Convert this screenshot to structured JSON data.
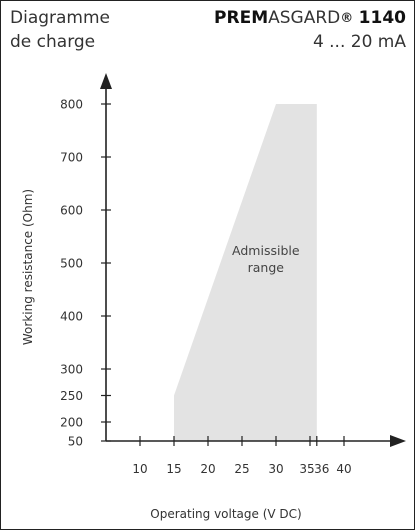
{
  "header": {
    "title_line1": "Diagramme",
    "title_line2": "de charge",
    "brand_bold": "PREM",
    "brand_light": "ASGARD",
    "brand_reg": "®",
    "model": "1140",
    "signal": "4 ... 20 mA"
  },
  "chart_data": {
    "type": "area",
    "title": "",
    "xlabel": "Operating voltage  (V DC)",
    "ylabel": "Working resistance  (Ohm)",
    "x_ticks": [
      10,
      15,
      20,
      25,
      30,
      35,
      36,
      40
    ],
    "y_ticks": [
      50,
      200,
      250,
      300,
      400,
      500,
      600,
      700,
      800
    ],
    "x_axis_origin_value": 5,
    "y_axis_origin_value": 50,
    "region": {
      "label_line1": "Admissible",
      "label_line2": "range",
      "color": "#e3e3e3",
      "points": [
        {
          "x": 15,
          "y": 50
        },
        {
          "x": 15,
          "y": 250
        },
        {
          "x": 30,
          "y": 800
        },
        {
          "x": 36,
          "y": 800
        },
        {
          "x": 36,
          "y": 50
        }
      ]
    },
    "grid": false,
    "axis_color": "#222222"
  }
}
